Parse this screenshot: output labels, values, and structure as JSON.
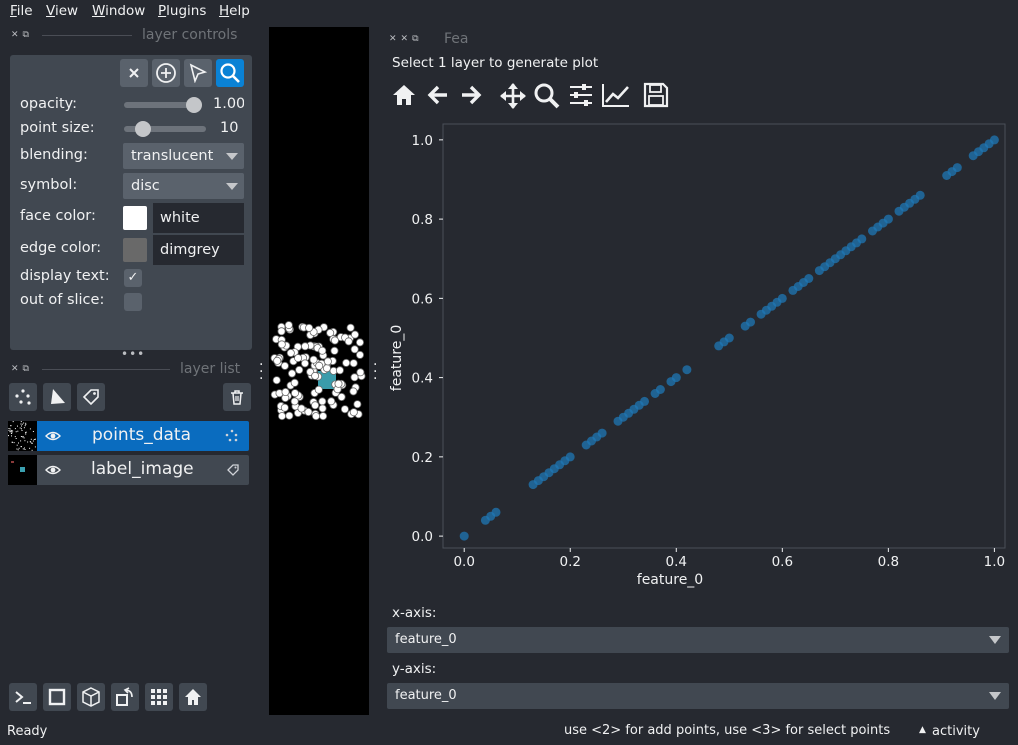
{
  "menubar": {
    "items": [
      {
        "label": "File",
        "accel": "F",
        "rest": "ile"
      },
      {
        "label": "View",
        "accel": "V",
        "rest": "iew"
      },
      {
        "label": "Window",
        "accel": "W",
        "rest": "indow"
      },
      {
        "label": "Plugins",
        "accel": "P",
        "rest": "lugins"
      },
      {
        "label": "Help",
        "accel": "H",
        "rest": "elp"
      }
    ]
  },
  "layer_controls": {
    "title": "layer controls",
    "opacity": {
      "label": "opacity:",
      "value": "1.00",
      "level": 1.0
    },
    "point_size": {
      "label": "point size:",
      "value": "10",
      "level": 0.17
    },
    "blending": {
      "label": "blending:",
      "value": "translucent"
    },
    "symbol": {
      "label": "symbol:",
      "value": "disc"
    },
    "face_color": {
      "label": "face color:",
      "value": "white",
      "swatch": "#ffffff"
    },
    "edge_color": {
      "label": "edge color:",
      "value": "dimgrey",
      "swatch": "#696969"
    },
    "display_text": {
      "label": "display text:",
      "checked": true,
      "mark": "✓"
    },
    "out_of_slice": {
      "label": "out of slice:",
      "checked": false
    },
    "toolbar_icons": [
      "delete-points-icon",
      "add-points-icon",
      "select-points-icon",
      "pan-zoom-icon"
    ]
  },
  "layer_list": {
    "title": "layer list",
    "layers": [
      {
        "name": "points_data",
        "visible": true,
        "selected": true,
        "type_icon": "points-icon"
      },
      {
        "name": "label_image",
        "visible": true,
        "selected": false,
        "type_icon": "labels-tag-icon"
      }
    ]
  },
  "plot_panel": {
    "title": "Fea",
    "hint": "Select 1 layer to generate plot",
    "x_axis_label": "x-axis:",
    "x_axis_value": "feature_0",
    "y_axis_label": "y-axis:",
    "y_axis_value": "feature_0"
  },
  "chart_data": {
    "type": "scatter",
    "xlabel": "feature_0",
    "ylabel": "feature_0",
    "xlim": [
      -0.04,
      1.02
    ],
    "ylim": [
      -0.03,
      1.04
    ],
    "xticks": [
      "0.0",
      "0.2",
      "0.4",
      "0.6",
      "0.8",
      "1.0"
    ],
    "yticks": [
      "0.0",
      "0.2",
      "0.4",
      "0.6",
      "0.8",
      "1.0"
    ],
    "marker_color": "#1f77b4",
    "x": [
      0.0,
      0.04,
      0.05,
      0.06,
      0.13,
      0.14,
      0.15,
      0.16,
      0.17,
      0.18,
      0.19,
      0.2,
      0.23,
      0.24,
      0.25,
      0.26,
      0.29,
      0.3,
      0.31,
      0.32,
      0.33,
      0.34,
      0.36,
      0.37,
      0.39,
      0.4,
      0.42,
      0.48,
      0.49,
      0.5,
      0.53,
      0.54,
      0.56,
      0.57,
      0.58,
      0.59,
      0.6,
      0.62,
      0.63,
      0.64,
      0.65,
      0.67,
      0.68,
      0.69,
      0.7,
      0.71,
      0.72,
      0.73,
      0.74,
      0.75,
      0.77,
      0.78,
      0.79,
      0.8,
      0.82,
      0.83,
      0.84,
      0.85,
      0.86,
      0.91,
      0.92,
      0.93,
      0.96,
      0.97,
      0.98,
      0.99,
      1.0
    ],
    "y": [
      0.0,
      0.04,
      0.05,
      0.06,
      0.13,
      0.14,
      0.15,
      0.16,
      0.17,
      0.18,
      0.19,
      0.2,
      0.23,
      0.24,
      0.25,
      0.26,
      0.29,
      0.3,
      0.31,
      0.32,
      0.33,
      0.34,
      0.36,
      0.37,
      0.39,
      0.4,
      0.42,
      0.48,
      0.49,
      0.5,
      0.53,
      0.54,
      0.56,
      0.57,
      0.58,
      0.59,
      0.6,
      0.62,
      0.63,
      0.64,
      0.65,
      0.67,
      0.68,
      0.69,
      0.7,
      0.71,
      0.72,
      0.73,
      0.74,
      0.75,
      0.77,
      0.78,
      0.79,
      0.8,
      0.82,
      0.83,
      0.84,
      0.85,
      0.86,
      0.91,
      0.92,
      0.93,
      0.96,
      0.97,
      0.98,
      0.99,
      1.0
    ]
  },
  "plot_toolbar": [
    "home-icon",
    "back-arrow-icon",
    "forward-arrow-icon",
    "pan-move-icon",
    "zoom-magnifier-icon",
    "configure-subplots-icon",
    "edit-axis-icon",
    "save-figure-icon"
  ],
  "viewer_buttons": [
    "console-icon",
    "ndisplay-square-icon",
    "3d-cube-icon",
    "roll-dims-icon",
    "grid-icon",
    "home-icon"
  ],
  "status_bar": {
    "left": "Ready",
    "hint": "use <2> for add points, use <3> for select points",
    "activity": "activity",
    "activity_icon": "caret-up-icon"
  },
  "colors": {
    "background": "#262930",
    "panel": "#414851",
    "accent": "#0a82d5",
    "canvas": "#000000"
  }
}
